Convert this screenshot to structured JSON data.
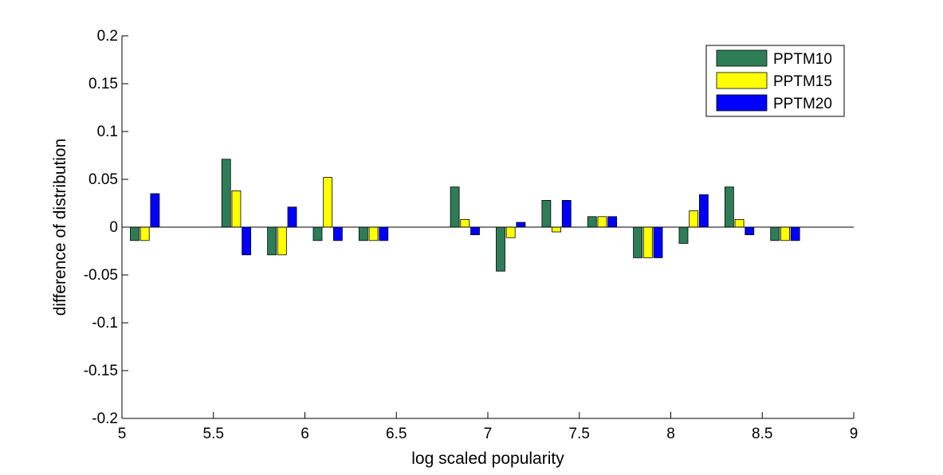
{
  "chart_data": {
    "type": "bar",
    "title": "",
    "xlabel": "log scaled popularity",
    "ylabel": "difference of distribution",
    "xlim": [
      5,
      9
    ],
    "ylim": [
      -0.2,
      0.2
    ],
    "x_ticks": [
      5,
      5.5,
      6,
      6.5,
      7,
      7.5,
      8,
      8.5,
      9
    ],
    "x_tick_labels": [
      "5",
      "5.5",
      "6",
      "6.5",
      "7",
      "7.5",
      "8",
      "8.5",
      "9"
    ],
    "y_ticks": [
      -0.2,
      -0.15,
      -0.1,
      -0.05,
      0,
      0.05,
      0.1,
      0.15,
      0.2
    ],
    "y_tick_labels": [
      "-0.2",
      "-0.15",
      "-0.1",
      "-0.05",
      "0",
      "0.05",
      "0.1",
      "0.15",
      "0.2"
    ],
    "grid": false,
    "legend_position": "top-right",
    "x": [
      5.125,
      5.625,
      5.875,
      6.125,
      6.375,
      6.875,
      7.125,
      7.375,
      7.625,
      7.875,
      8.125,
      8.375,
      8.625
    ],
    "series": [
      {
        "name": "PPTM10",
        "color": "#2e7d57",
        "values": [
          -0.014,
          0.071,
          -0.029,
          -0.014,
          -0.014,
          0.042,
          -0.046,
          0.028,
          0.011,
          -0.032,
          -0.017,
          0.042,
          -0.014
        ]
      },
      {
        "name": "PPTM15",
        "color": "#ffff00",
        "values": [
          -0.014,
          0.038,
          -0.029,
          0.052,
          -0.014,
          0.008,
          -0.011,
          -0.005,
          0.011,
          -0.032,
          0.017,
          0.008,
          -0.014
        ]
      },
      {
        "name": "PPTM20",
        "color": "#0000ff",
        "values": [
          0.035,
          -0.029,
          0.021,
          -0.014,
          -0.014,
          -0.008,
          0.005,
          0.028,
          0.011,
          -0.032,
          0.034,
          -0.008,
          -0.014
        ]
      }
    ]
  }
}
